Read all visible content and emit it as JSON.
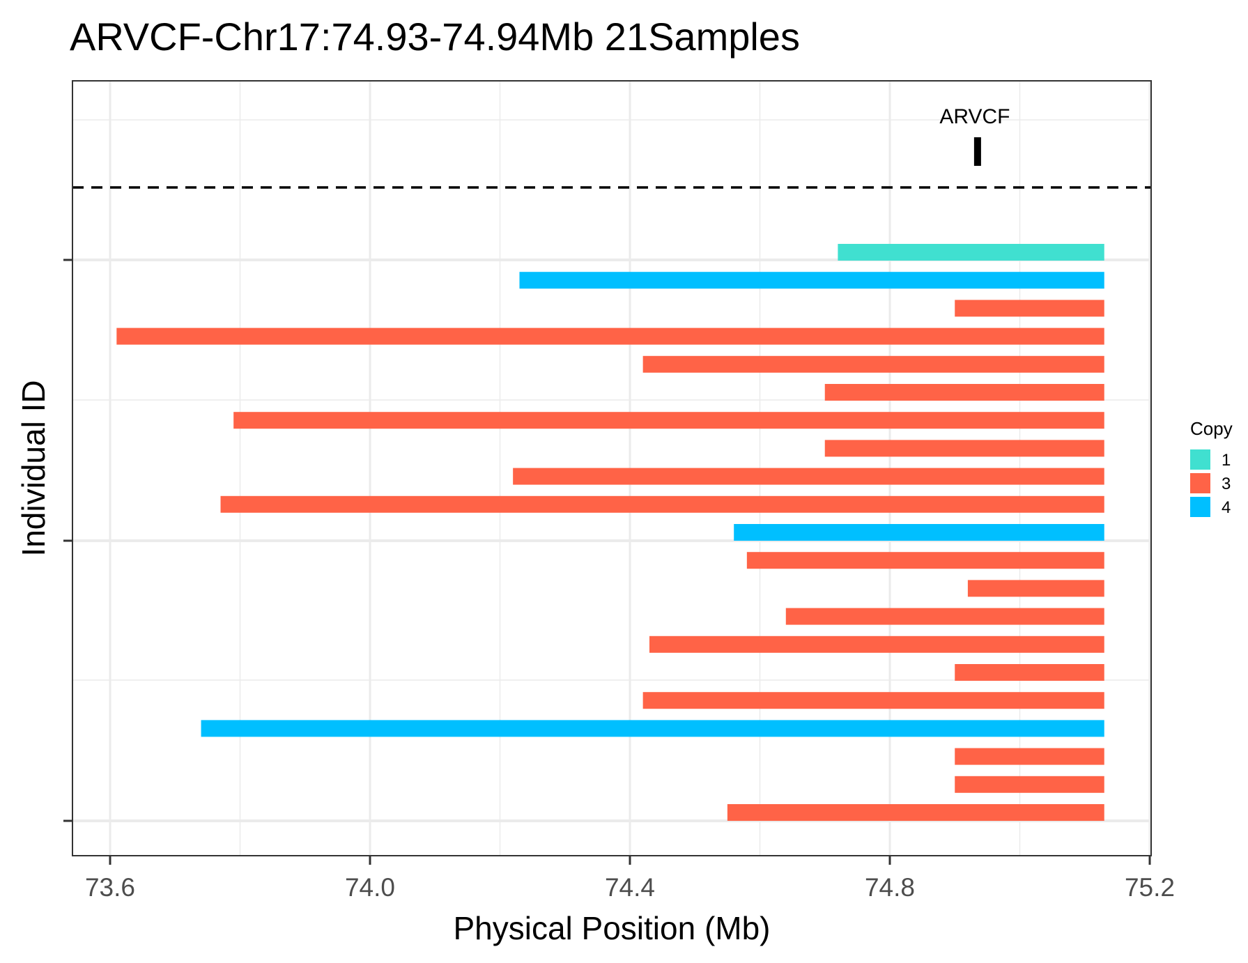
{
  "chart_data": {
    "type": "bar",
    "subtype": "horizontal-range",
    "title": "ARVCF-Chr17:74.93-74.94Mb 21Samples",
    "xlabel": "Physical Position (Mb)",
    "ylabel": "Individual ID",
    "xlim": [
      73.55,
      75.2
    ],
    "x_ticks": [
      73.6,
      74.0,
      74.4,
      74.8,
      75.2
    ],
    "x_tick_labels": [
      "73.6",
      "74.0",
      "74.4",
      "74.8",
      "75.2"
    ],
    "grid": true,
    "legend": {
      "title": "Copy",
      "position": "right",
      "entries": [
        {
          "label": "1",
          "color": "#40E0D0"
        },
        {
          "label": "3",
          "color": "#FF6347"
        },
        {
          "label": "4",
          "color": "#00BFFF"
        }
      ]
    },
    "gene": {
      "name": "ARVCF",
      "position": 74.935
    },
    "segments": [
      {
        "start": 74.72,
        "end": 75.13,
        "copy": "1"
      },
      {
        "start": 74.23,
        "end": 75.13,
        "copy": "4"
      },
      {
        "start": 74.9,
        "end": 75.13,
        "copy": "3"
      },
      {
        "start": 73.61,
        "end": 75.13,
        "copy": "3"
      },
      {
        "start": 74.42,
        "end": 75.13,
        "copy": "3"
      },
      {
        "start": 74.7,
        "end": 75.13,
        "copy": "3"
      },
      {
        "start": 73.79,
        "end": 75.13,
        "copy": "3"
      },
      {
        "start": 74.7,
        "end": 75.13,
        "copy": "3"
      },
      {
        "start": 74.22,
        "end": 75.13,
        "copy": "3"
      },
      {
        "start": 73.77,
        "end": 75.13,
        "copy": "3"
      },
      {
        "start": 74.56,
        "end": 75.13,
        "copy": "4"
      },
      {
        "start": 74.58,
        "end": 75.13,
        "copy": "3"
      },
      {
        "start": 74.92,
        "end": 75.13,
        "copy": "3"
      },
      {
        "start": 74.64,
        "end": 75.13,
        "copy": "3"
      },
      {
        "start": 74.43,
        "end": 75.13,
        "copy": "3"
      },
      {
        "start": 74.9,
        "end": 75.13,
        "copy": "3"
      },
      {
        "start": 74.42,
        "end": 75.13,
        "copy": "3"
      },
      {
        "start": 73.74,
        "end": 75.13,
        "copy": "4"
      },
      {
        "start": 74.9,
        "end": 75.13,
        "copy": "3"
      },
      {
        "start": 74.9,
        "end": 75.13,
        "copy": "3"
      },
      {
        "start": 74.55,
        "end": 75.13,
        "copy": "3"
      }
    ]
  }
}
